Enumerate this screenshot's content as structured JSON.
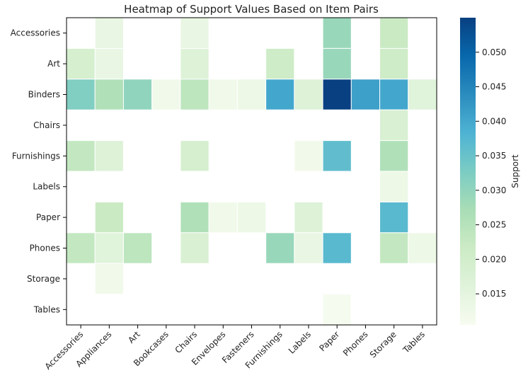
{
  "chart_data": {
    "type": "heatmap",
    "title": "Heatmap of Support Values Based on Item Pairs",
    "x_categories": [
      "Accessories",
      "Appliances",
      "Art",
      "Bookcases",
      "Chairs",
      "Envelopes",
      "Fasteners",
      "Furnishings",
      "Labels",
      "Paper",
      "Phones",
      "Storage",
      "Tables"
    ],
    "y_categories": [
      "Accessories",
      "Art",
      "Binders",
      "Chairs",
      "Furnishings",
      "Labels",
      "Paper",
      "Phones",
      "Storage",
      "Tables"
    ],
    "values": [
      [
        null,
        0.014,
        null,
        null,
        0.014,
        null,
        null,
        null,
        null,
        0.029,
        null,
        0.022,
        null
      ],
      [
        0.019,
        0.014,
        null,
        null,
        0.017,
        null,
        null,
        0.021,
        null,
        0.029,
        null,
        0.021,
        null
      ],
      [
        0.032,
        0.026,
        0.03,
        0.012,
        0.024,
        0.012,
        0.013,
        0.04,
        0.017,
        0.055,
        0.041,
        0.04,
        0.016
      ],
      [
        null,
        null,
        null,
        null,
        null,
        null,
        null,
        null,
        null,
        null,
        null,
        0.018,
        null
      ],
      [
        0.023,
        0.017,
        null,
        null,
        0.019,
        null,
        null,
        null,
        0.012,
        0.036,
        null,
        0.026,
        null
      ],
      [
        null,
        null,
        null,
        null,
        null,
        null,
        null,
        null,
        null,
        null,
        null,
        0.013,
        null
      ],
      [
        null,
        0.022,
        null,
        null,
        0.026,
        0.012,
        0.013,
        null,
        0.017,
        null,
        null,
        0.037,
        null
      ],
      [
        0.023,
        0.016,
        0.024,
        null,
        0.018,
        null,
        null,
        0.029,
        0.014,
        0.037,
        null,
        0.023,
        0.013
      ],
      [
        null,
        0.012,
        null,
        null,
        null,
        null,
        null,
        null,
        null,
        null,
        null,
        null,
        null
      ],
      [
        null,
        null,
        null,
        null,
        null,
        null,
        null,
        null,
        null,
        0.011,
        null,
        null,
        null
      ]
    ],
    "colormap": "GnBu",
    "vmin": 0.0105,
    "vmax": 0.055,
    "colorbar": {
      "label": "Support",
      "ticks": [
        0.015,
        0.02,
        0.025,
        0.03,
        0.035,
        0.04,
        0.045,
        0.05
      ],
      "tick_labels": [
        "0.015",
        "0.020",
        "0.025",
        "0.030",
        "0.035",
        "0.040",
        "0.045",
        "0.050"
      ]
    },
    "grid": false,
    "legend": "colorbar-right"
  }
}
